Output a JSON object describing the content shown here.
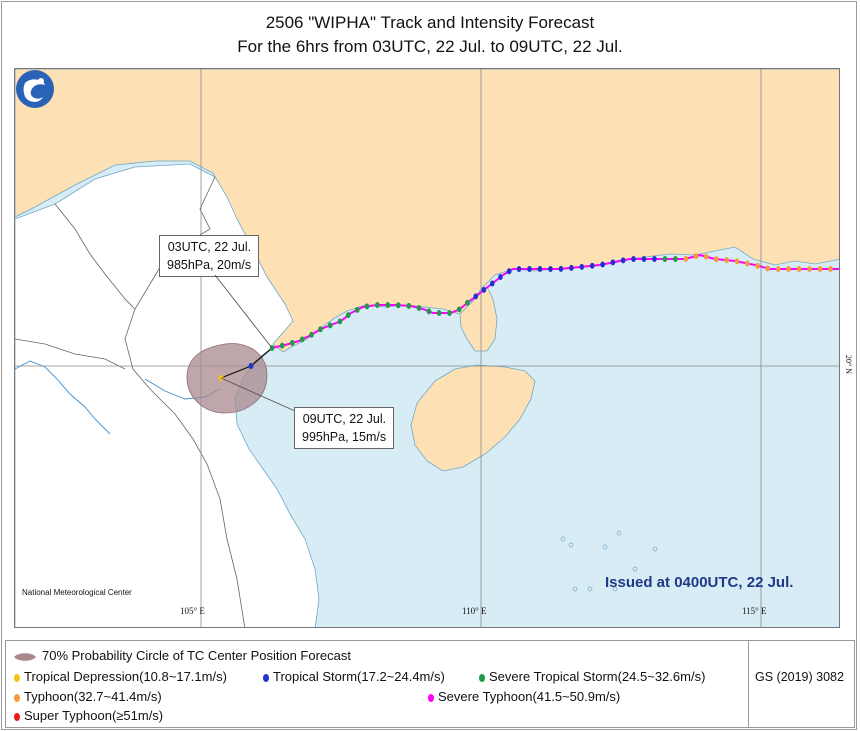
{
  "title": {
    "line1": "2506 \"WIPHA\" Track and Intensity Forecast",
    "line2": "For the 6hrs from 03UTC, 22 Jul. to 09UTC, 22 Jul."
  },
  "map": {
    "lon_labels": [
      "105° E",
      "110° E",
      "115° E"
    ],
    "lat_labels": [
      "20° N"
    ],
    "colors": {
      "sea": "#d8ecf6",
      "land_china": "#fde1b4",
      "land_other": "#ffffff",
      "track_line": "#ff00ff",
      "probability_circle": "#a8888d"
    },
    "callouts": {
      "first": {
        "time": "03UTC, 22 Jul.",
        "detail": "985hPa, 20m/s"
      },
      "second": {
        "time": "09UTC, 22 Jul.",
        "detail": "995hPa, 15m/s"
      }
    },
    "issued": "Issued at 0400UTC, 22 Jul.",
    "logo_icon": "nmc-logo-icon",
    "agency": "National Meteorological Center"
  },
  "legend": {
    "circle_label": "70% Probability Circle of TC Center Position Forecast",
    "items": [
      {
        "label": "Tropical Depression(10.8~17.1m/s)",
        "color": "#f2c418"
      },
      {
        "label": "Tropical Storm(17.2~24.4m/s)",
        "color": "#2233cc"
      },
      {
        "label": "Severe Tropical Storm(24.5~32.6m/s)",
        "color": "#229944"
      },
      {
        "label": "Typhoon(32.7~41.4m/s)",
        "color": "#f39a3c"
      },
      {
        "label": "Severe Typhoon(41.5~50.9m/s)",
        "color": "#ff00ff"
      },
      {
        "label": "Super Typhoon(≥51m/s)",
        "color": "#e81b1b"
      }
    ],
    "gs": "GS (2019) 3082"
  }
}
